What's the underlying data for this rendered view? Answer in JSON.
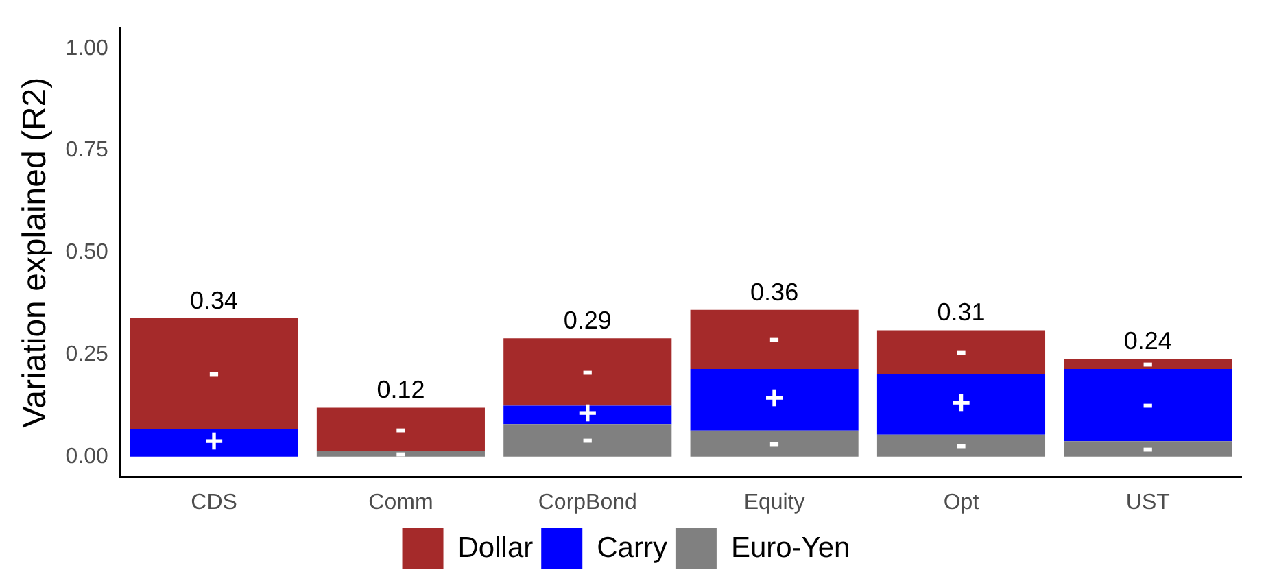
{
  "chart_data": {
    "type": "bar",
    "stacked": true,
    "ylabel": "Variation explained (R2)",
    "categories": [
      "CDS",
      "Comm",
      "CorpBond",
      "Equity",
      "Opt",
      "UST"
    ],
    "series": [
      {
        "name": "Euro-Yen",
        "color": "#808080",
        "values": [
          0,
          0.013,
          0.08,
          0.064,
          0.054,
          0.038
        ],
        "value_labels": [
          null,
          "-",
          "-",
          "-",
          "-",
          "-"
        ]
      },
      {
        "name": "Carry",
        "color": "#0000ff",
        "values": [
          0.067,
          0,
          0.045,
          0.151,
          0.148,
          0.177
        ],
        "value_labels": [
          "+",
          null,
          "+",
          "+",
          "+",
          "-"
        ]
      },
      {
        "name": "Dollar",
        "color": "#a52a2a",
        "values": [
          0.273,
          0.107,
          0.165,
          0.145,
          0.108,
          0.025
        ],
        "value_labels": [
          "-",
          "-",
          "-",
          "-",
          "-",
          "-"
        ]
      }
    ],
    "totals": [
      "0.34",
      "0.12",
      "0.29",
      "0.36",
      "0.31",
      "0.24"
    ],
    "ylim": [
      -0.05,
      1.05
    ],
    "yticks": [
      {
        "value": 0,
        "label": "0.00"
      },
      {
        "value": 0.25,
        "label": "0.25"
      },
      {
        "value": 0.5,
        "label": "0.50"
      },
      {
        "value": 0.75,
        "label": "0.75"
      },
      {
        "value": 1,
        "label": "1.00"
      }
    ],
    "grid": false,
    "legend": "bottom"
  }
}
